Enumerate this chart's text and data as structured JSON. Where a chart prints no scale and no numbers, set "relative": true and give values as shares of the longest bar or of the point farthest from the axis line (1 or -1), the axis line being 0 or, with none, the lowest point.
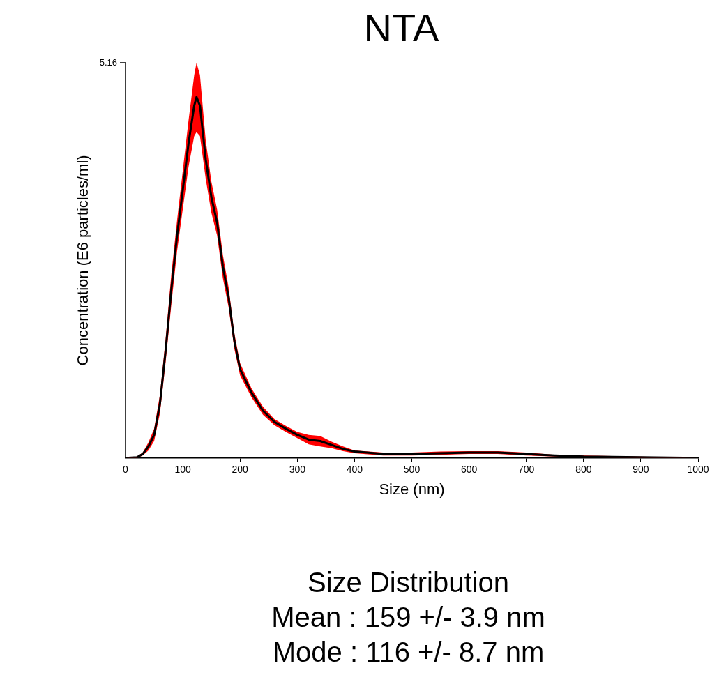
{
  "chart_data": {
    "type": "line",
    "title": "NTA",
    "xlabel": "Size (nm)",
    "ylabel": "Concentration (E6 particles/ml)",
    "relative": true,
    "x": [
      0,
      20,
      30,
      40,
      50,
      60,
      70,
      80,
      90,
      100,
      110,
      120,
      124,
      130,
      140,
      150,
      160,
      170,
      180,
      190,
      200,
      220,
      240,
      260,
      280,
      300,
      320,
      340,
      360,
      380,
      400,
      450,
      500,
      550,
      600,
      650,
      700,
      750,
      800,
      900,
      1000
    ],
    "series": [
      {
        "color": "#000000",
        "values": [
          0,
          0.002,
          0.011,
          0.032,
          0.064,
          0.149,
          0.297,
          0.467,
          0.616,
          0.743,
          0.871,
          0.976,
          1,
          0.976,
          0.828,
          0.722,
          0.652,
          0.53,
          0.446,
          0.325,
          0.246,
          0.181,
          0.131,
          0.1,
          0.081,
          0.064,
          0.051,
          0.047,
          0.036,
          0.025,
          0.018,
          0.011,
          0.011,
          0.013,
          0.015,
          0.015,
          0.011,
          0.007,
          0.004,
          0.002,
          0
        ],
        "lower": [
          0,
          0,
          0.007,
          0.021,
          0.047,
          0.123,
          0.265,
          0.425,
          0.573,
          0.69,
          0.806,
          0.892,
          0.903,
          0.892,
          0.774,
          0.679,
          0.616,
          0.498,
          0.418,
          0.303,
          0.229,
          0.168,
          0.12,
          0.091,
          0.072,
          0.055,
          0.038,
          0.032,
          0.027,
          0.019,
          0.013,
          0.007,
          0.007,
          0.009,
          0.011,
          0.011,
          0.007,
          0.004,
          0.002,
          0,
          0
        ],
        "upper": [
          0,
          0.004,
          0.015,
          0.043,
          0.081,
          0.174,
          0.329,
          0.509,
          0.658,
          0.796,
          0.934,
          1.061,
          1.095,
          1.061,
          0.881,
          0.765,
          0.688,
          0.563,
          0.473,
          0.346,
          0.263,
          0.193,
          0.142,
          0.108,
          0.089,
          0.072,
          0.064,
          0.061,
          0.045,
          0.032,
          0.021,
          0.015,
          0.015,
          0.018,
          0.019,
          0.019,
          0.015,
          0.009,
          0.007,
          0.004,
          0
        ]
      }
    ],
    "xlim": [
      0,
      1000
    ],
    "xticks": [
      0,
      100,
      200,
      300,
      400,
      500,
      600,
      700,
      800,
      900,
      1000
    ],
    "grid": false,
    "legend": false,
    "marker": "none",
    "line_style": "solid",
    "annotations": [
      "5.16",
      "Size Distribution",
      "Mean : 159 +/- 3.9 nm",
      "Mode : 116 +/- 8.7 nm"
    ]
  }
}
